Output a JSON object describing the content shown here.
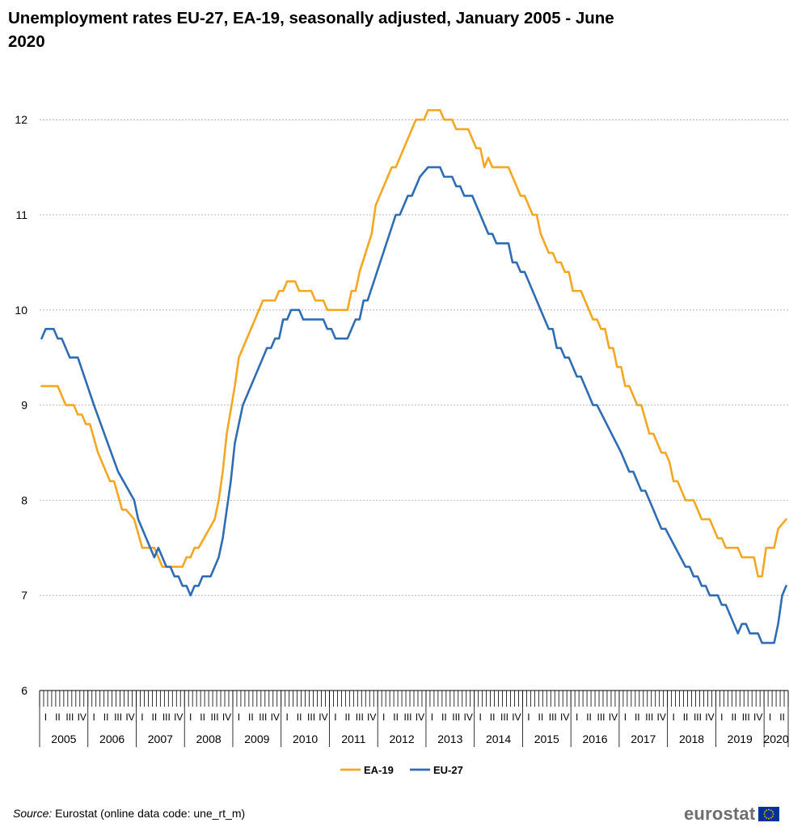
{
  "chart_data": {
    "type": "line",
    "title": "Unemployment rates EU-27, EA-19, seasonally adjusted, January 2005 - June 2020",
    "xlabel": "",
    "ylabel": "",
    "ylim": [
      6,
      12.5
    ],
    "yticks": [
      "6",
      "7",
      "8",
      "9",
      "10",
      "11",
      "12"
    ],
    "grid": "horizontal dashed",
    "legend_position": "bottom",
    "x_start": "2005-01",
    "x_end": "2020-06",
    "years": [
      "2005",
      "2006",
      "2007",
      "2008",
      "2009",
      "2010",
      "2011",
      "2012",
      "2013",
      "2014",
      "2015",
      "2016",
      "2017",
      "2018",
      "2019",
      "2020"
    ],
    "quarter_labels": [
      "I",
      "II",
      "III",
      "IV"
    ],
    "series": [
      {
        "name": "EA-19",
        "color": "#f5a623",
        "points": [
          [
            "2005-01",
            9.2
          ],
          [
            "2005-05",
            9.2
          ],
          [
            "2005-07",
            9.0
          ],
          [
            "2005-09",
            9.0
          ],
          [
            "2005-10",
            8.9
          ],
          [
            "2005-11",
            8.9
          ],
          [
            "2005-12",
            8.8
          ],
          [
            "2006-01",
            8.8
          ],
          [
            "2006-03",
            8.5
          ],
          [
            "2006-05",
            8.3
          ],
          [
            "2006-06",
            8.2
          ],
          [
            "2006-07",
            8.2
          ],
          [
            "2006-09",
            7.9
          ],
          [
            "2006-10",
            7.9
          ],
          [
            "2006-12",
            7.8
          ],
          [
            "2007-02",
            7.5
          ],
          [
            "2007-05",
            7.5
          ],
          [
            "2007-07",
            7.3
          ],
          [
            "2007-12",
            7.3
          ],
          [
            "2008-01",
            7.4
          ],
          [
            "2008-02",
            7.4
          ],
          [
            "2008-03",
            7.5
          ],
          [
            "2008-04",
            7.5
          ],
          [
            "2008-08",
            7.8
          ],
          [
            "2008-09",
            8.0
          ],
          [
            "2008-10",
            8.3
          ],
          [
            "2008-11",
            8.7
          ],
          [
            "2009-01",
            9.2
          ],
          [
            "2009-02",
            9.5
          ],
          [
            "2009-06",
            9.9
          ],
          [
            "2009-08",
            10.1
          ],
          [
            "2009-11",
            10.1
          ],
          [
            "2009-12",
            10.2
          ],
          [
            "2010-01",
            10.2
          ],
          [
            "2010-02",
            10.3
          ],
          [
            "2010-04",
            10.3
          ],
          [
            "2010-05",
            10.2
          ],
          [
            "2010-08",
            10.2
          ],
          [
            "2010-09",
            10.1
          ],
          [
            "2010-11",
            10.1
          ],
          [
            "2010-12",
            10.0
          ],
          [
            "2011-05",
            10.0
          ],
          [
            "2011-06",
            10.2
          ],
          [
            "2011-07",
            10.2
          ],
          [
            "2011-08",
            10.4
          ],
          [
            "2011-11",
            10.8
          ],
          [
            "2011-12",
            11.1
          ],
          [
            "2012-04",
            11.5
          ],
          [
            "2012-05",
            11.5
          ],
          [
            "2012-10",
            12.0
          ],
          [
            "2012-12",
            12.0
          ],
          [
            "2013-01",
            12.1
          ],
          [
            "2013-04",
            12.1
          ],
          [
            "2013-05",
            12.0
          ],
          [
            "2013-07",
            12.0
          ],
          [
            "2013-08",
            11.9
          ],
          [
            "2013-11",
            11.9
          ],
          [
            "2014-01",
            11.7
          ],
          [
            "2014-02",
            11.7
          ],
          [
            "2014-03",
            11.5
          ],
          [
            "2014-04",
            11.6
          ],
          [
            "2014-05",
            11.5
          ],
          [
            "2014-09",
            11.5
          ],
          [
            "2014-12",
            11.2
          ],
          [
            "2015-01",
            11.2
          ],
          [
            "2015-03",
            11.0
          ],
          [
            "2015-04",
            11.0
          ],
          [
            "2015-05",
            10.8
          ],
          [
            "2015-07",
            10.6
          ],
          [
            "2015-08",
            10.6
          ],
          [
            "2015-09",
            10.5
          ],
          [
            "2015-10",
            10.5
          ],
          [
            "2015-11",
            10.4
          ],
          [
            "2015-12",
            10.4
          ],
          [
            "2016-01",
            10.2
          ],
          [
            "2016-03",
            10.2
          ],
          [
            "2016-06",
            9.9
          ],
          [
            "2016-07",
            9.9
          ],
          [
            "2016-08",
            9.8
          ],
          [
            "2016-09",
            9.8
          ],
          [
            "2016-10",
            9.6
          ],
          [
            "2016-11",
            9.6
          ],
          [
            "2016-12",
            9.4
          ],
          [
            "2017-01",
            9.4
          ],
          [
            "2017-02",
            9.2
          ],
          [
            "2017-03",
            9.2
          ],
          [
            "2017-05",
            9.0
          ],
          [
            "2017-06",
            9.0
          ],
          [
            "2017-08",
            8.7
          ],
          [
            "2017-09",
            8.7
          ],
          [
            "2017-11",
            8.5
          ],
          [
            "2017-12",
            8.5
          ],
          [
            "2018-01",
            8.4
          ],
          [
            "2018-02",
            8.2
          ],
          [
            "2018-03",
            8.2
          ],
          [
            "2018-05",
            8.0
          ],
          [
            "2018-07",
            8.0
          ],
          [
            "2018-09",
            7.8
          ],
          [
            "2018-11",
            7.8
          ],
          [
            "2019-01",
            7.6
          ],
          [
            "2019-02",
            7.6
          ],
          [
            "2019-03",
            7.5
          ],
          [
            "2019-06",
            7.5
          ],
          [
            "2019-07",
            7.4
          ],
          [
            "2019-10",
            7.4
          ],
          [
            "2019-11",
            7.2
          ],
          [
            "2019-12",
            7.2
          ],
          [
            "2020-01",
            7.5
          ],
          [
            "2020-02",
            7.5
          ],
          [
            "2020-03",
            7.5
          ],
          [
            "2020-04",
            7.7
          ],
          [
            "2020-06",
            7.8
          ]
        ]
      },
      {
        "name": "EU-27",
        "color": "#2e6db4",
        "points": [
          [
            "2005-01",
            9.7
          ],
          [
            "2005-02",
            9.8
          ],
          [
            "2005-04",
            9.8
          ],
          [
            "2005-05",
            9.7
          ],
          [
            "2005-06",
            9.7
          ],
          [
            "2005-08",
            9.5
          ],
          [
            "2005-10",
            9.5
          ],
          [
            "2006-02",
            9.0
          ],
          [
            "2006-08",
            8.3
          ],
          [
            "2006-12",
            8.0
          ],
          [
            "2007-01",
            7.8
          ],
          [
            "2007-05",
            7.4
          ],
          [
            "2007-06",
            7.5
          ],
          [
            "2007-08",
            7.3
          ],
          [
            "2007-09",
            7.3
          ],
          [
            "2007-10",
            7.2
          ],
          [
            "2007-11",
            7.2
          ],
          [
            "2007-12",
            7.1
          ],
          [
            "2008-01",
            7.1
          ],
          [
            "2008-02",
            7.0
          ],
          [
            "2008-03",
            7.1
          ],
          [
            "2008-04",
            7.1
          ],
          [
            "2008-05",
            7.2
          ],
          [
            "2008-07",
            7.2
          ],
          [
            "2008-09",
            7.4
          ],
          [
            "2008-10",
            7.6
          ],
          [
            "2008-12",
            8.2
          ],
          [
            "2009-01",
            8.6
          ],
          [
            "2009-03",
            9.0
          ],
          [
            "2009-07",
            9.4
          ],
          [
            "2009-09",
            9.6
          ],
          [
            "2009-10",
            9.6
          ],
          [
            "2009-11",
            9.7
          ],
          [
            "2009-12",
            9.7
          ],
          [
            "2010-01",
            9.9
          ],
          [
            "2010-02",
            9.9
          ],
          [
            "2010-03",
            10.0
          ],
          [
            "2010-05",
            10.0
          ],
          [
            "2010-06",
            9.9
          ],
          [
            "2010-11",
            9.9
          ],
          [
            "2010-12",
            9.8
          ],
          [
            "2011-01",
            9.8
          ],
          [
            "2011-02",
            9.7
          ],
          [
            "2011-05",
            9.7
          ],
          [
            "2011-07",
            9.9
          ],
          [
            "2011-08",
            9.9
          ],
          [
            "2011-09",
            10.1
          ],
          [
            "2011-10",
            10.1
          ],
          [
            "2012-05",
            11.0
          ],
          [
            "2012-06",
            11.0
          ],
          [
            "2012-08",
            11.2
          ],
          [
            "2012-09",
            11.2
          ],
          [
            "2012-11",
            11.4
          ],
          [
            "2013-01",
            11.5
          ],
          [
            "2013-04",
            11.5
          ],
          [
            "2013-05",
            11.4
          ],
          [
            "2013-07",
            11.4
          ],
          [
            "2013-08",
            11.3
          ],
          [
            "2013-09",
            11.3
          ],
          [
            "2013-10",
            11.2
          ],
          [
            "2013-12",
            11.2
          ],
          [
            "2014-04",
            10.8
          ],
          [
            "2014-05",
            10.8
          ],
          [
            "2014-06",
            10.7
          ],
          [
            "2014-09",
            10.7
          ],
          [
            "2014-10",
            10.5
          ],
          [
            "2014-11",
            10.5
          ],
          [
            "2014-12",
            10.4
          ],
          [
            "2015-01",
            10.4
          ],
          [
            "2015-06",
            9.9
          ],
          [
            "2015-07",
            9.8
          ],
          [
            "2015-08",
            9.8
          ],
          [
            "2015-09",
            9.6
          ],
          [
            "2015-10",
            9.6
          ],
          [
            "2015-11",
            9.5
          ],
          [
            "2015-12",
            9.5
          ],
          [
            "2016-02",
            9.3
          ],
          [
            "2016-03",
            9.3
          ],
          [
            "2016-06",
            9.0
          ],
          [
            "2016-07",
            9.0
          ],
          [
            "2017-01",
            8.5
          ],
          [
            "2017-03",
            8.3
          ],
          [
            "2017-04",
            8.3
          ],
          [
            "2017-06",
            8.1
          ],
          [
            "2017-07",
            8.1
          ],
          [
            "2017-10",
            7.8
          ],
          [
            "2017-11",
            7.7
          ],
          [
            "2017-12",
            7.7
          ],
          [
            "2018-05",
            7.3
          ],
          [
            "2018-06",
            7.3
          ],
          [
            "2018-07",
            7.2
          ],
          [
            "2018-08",
            7.2
          ],
          [
            "2018-09",
            7.1
          ],
          [
            "2018-10",
            7.1
          ],
          [
            "2018-11",
            7.0
          ],
          [
            "2019-01",
            7.0
          ],
          [
            "2019-02",
            6.9
          ],
          [
            "2019-03",
            6.9
          ],
          [
            "2019-06",
            6.6
          ],
          [
            "2019-07",
            6.7
          ],
          [
            "2019-08",
            6.7
          ],
          [
            "2019-09",
            6.6
          ],
          [
            "2019-11",
            6.6
          ],
          [
            "2019-12",
            6.5
          ],
          [
            "2020-03",
            6.5
          ],
          [
            "2020-04",
            6.7
          ],
          [
            "2020-05",
            7.0
          ],
          [
            "2020-06",
            7.1
          ]
        ]
      }
    ]
  },
  "source": {
    "label": "Source:",
    "text": " Eurostat (online data code: une_rt_m)"
  },
  "logo": {
    "text": "eurostat"
  }
}
